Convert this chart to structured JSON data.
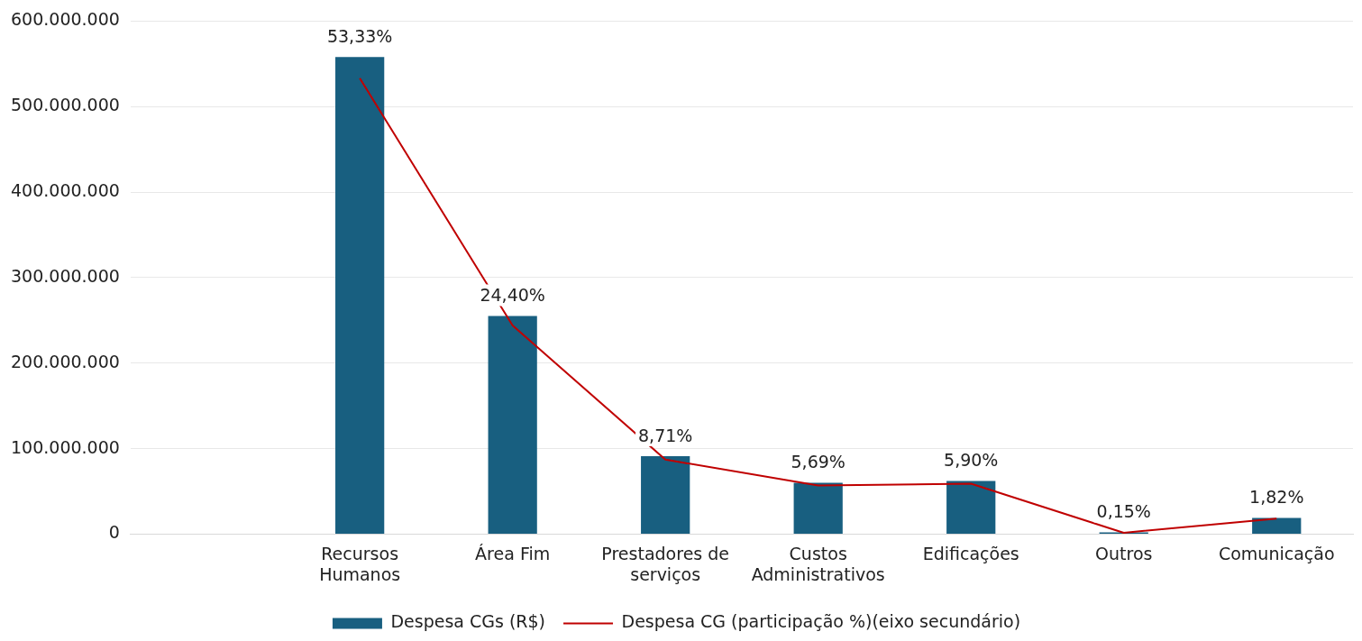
{
  "chart_data": {
    "type": "bar",
    "categories": [
      null,
      "Recursos Humanos",
      "Área Fim",
      "Prestadores de serviços",
      "Custos Administrativos",
      "Edificações",
      "Outros",
      "Comunicação"
    ],
    "series": [
      {
        "name": "Despesa CGs (R$)",
        "color": "#185f80",
        "values": [
          null,
          558000000,
          255000000,
          91000000,
          60000000,
          62000000,
          2000000,
          19000000
        ]
      },
      {
        "name": "Despesa CG (participação %)(eixo secundário)",
        "type": "line",
        "axis": "y2",
        "color": "#c00000",
        "values": [
          null,
          53.33,
          24.4,
          8.71,
          5.69,
          5.9,
          0.15,
          1.82
        ],
        "value_labels": [
          null,
          "53,33%",
          "24,40%",
          "8,71%",
          "5,69%",
          "5,90%",
          "0,15%",
          "1,82%"
        ]
      }
    ],
    "ylim": [
      0,
      600000000
    ],
    "yticks": [
      {
        "value": 0,
        "label": "0"
      },
      {
        "value": 100000000,
        "label": "100.000.000"
      },
      {
        "value": 200000000,
        "label": "200.000.000"
      },
      {
        "value": 300000000,
        "label": "300.000.000"
      },
      {
        "value": 400000000,
        "label": "400.000.000"
      },
      {
        "value": 500000000,
        "label": "500.000.000"
      },
      {
        "value": 600000000,
        "label": "600.000.000"
      }
    ],
    "y2lim": [
      0,
      60
    ],
    "grid": "y",
    "legend": "bottom",
    "marker": "none"
  }
}
